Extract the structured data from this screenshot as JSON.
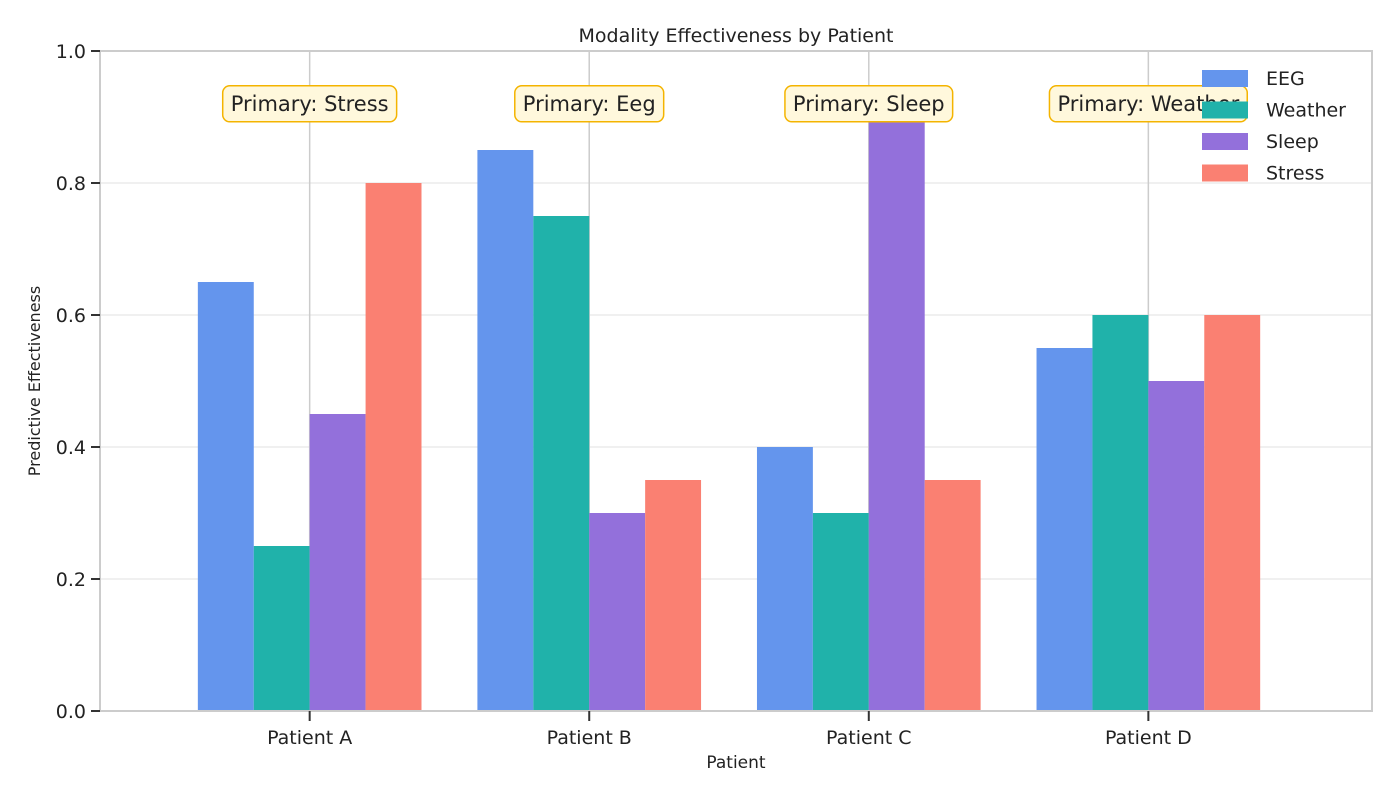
{
  "chart_data": {
    "type": "bar",
    "title": "Modality Effectiveness by Patient",
    "xlabel": "Patient",
    "ylabel": "Predictive Effectiveness",
    "categories": [
      "Patient A",
      "Patient B",
      "Patient C",
      "Patient D"
    ],
    "ylim": [
      0,
      1
    ],
    "yticks": [
      0,
      0.2,
      0.4,
      0.6,
      0.8,
      1
    ],
    "ytick_labels": [
      "0.0",
      "0.2",
      "0.4",
      "0.6",
      "0.8",
      "1.0"
    ],
    "grid": "horizontal gridlines plus vertical gridlines at category ticks",
    "legend_position": "top-right",
    "series": [
      {
        "name": "EEG",
        "color": "#6495ED",
        "values": [
          0.65,
          0.85,
          0.4,
          0.55
        ]
      },
      {
        "name": "Weather",
        "color": "#20B2AA",
        "values": [
          0.25,
          0.75,
          0.3,
          0.6
        ]
      },
      {
        "name": "Sleep",
        "color": "#9370DB",
        "values": [
          0.45,
          0.3,
          0.9,
          0.5
        ]
      },
      {
        "name": "Stress",
        "color": "#FA8072",
        "values": [
          0.8,
          0.35,
          0.35,
          0.6
        ]
      }
    ],
    "annotations": [
      "Primary: Stress",
      "Primary: Eeg",
      "Primary: Sleep",
      "Primary: Weather"
    ]
  }
}
